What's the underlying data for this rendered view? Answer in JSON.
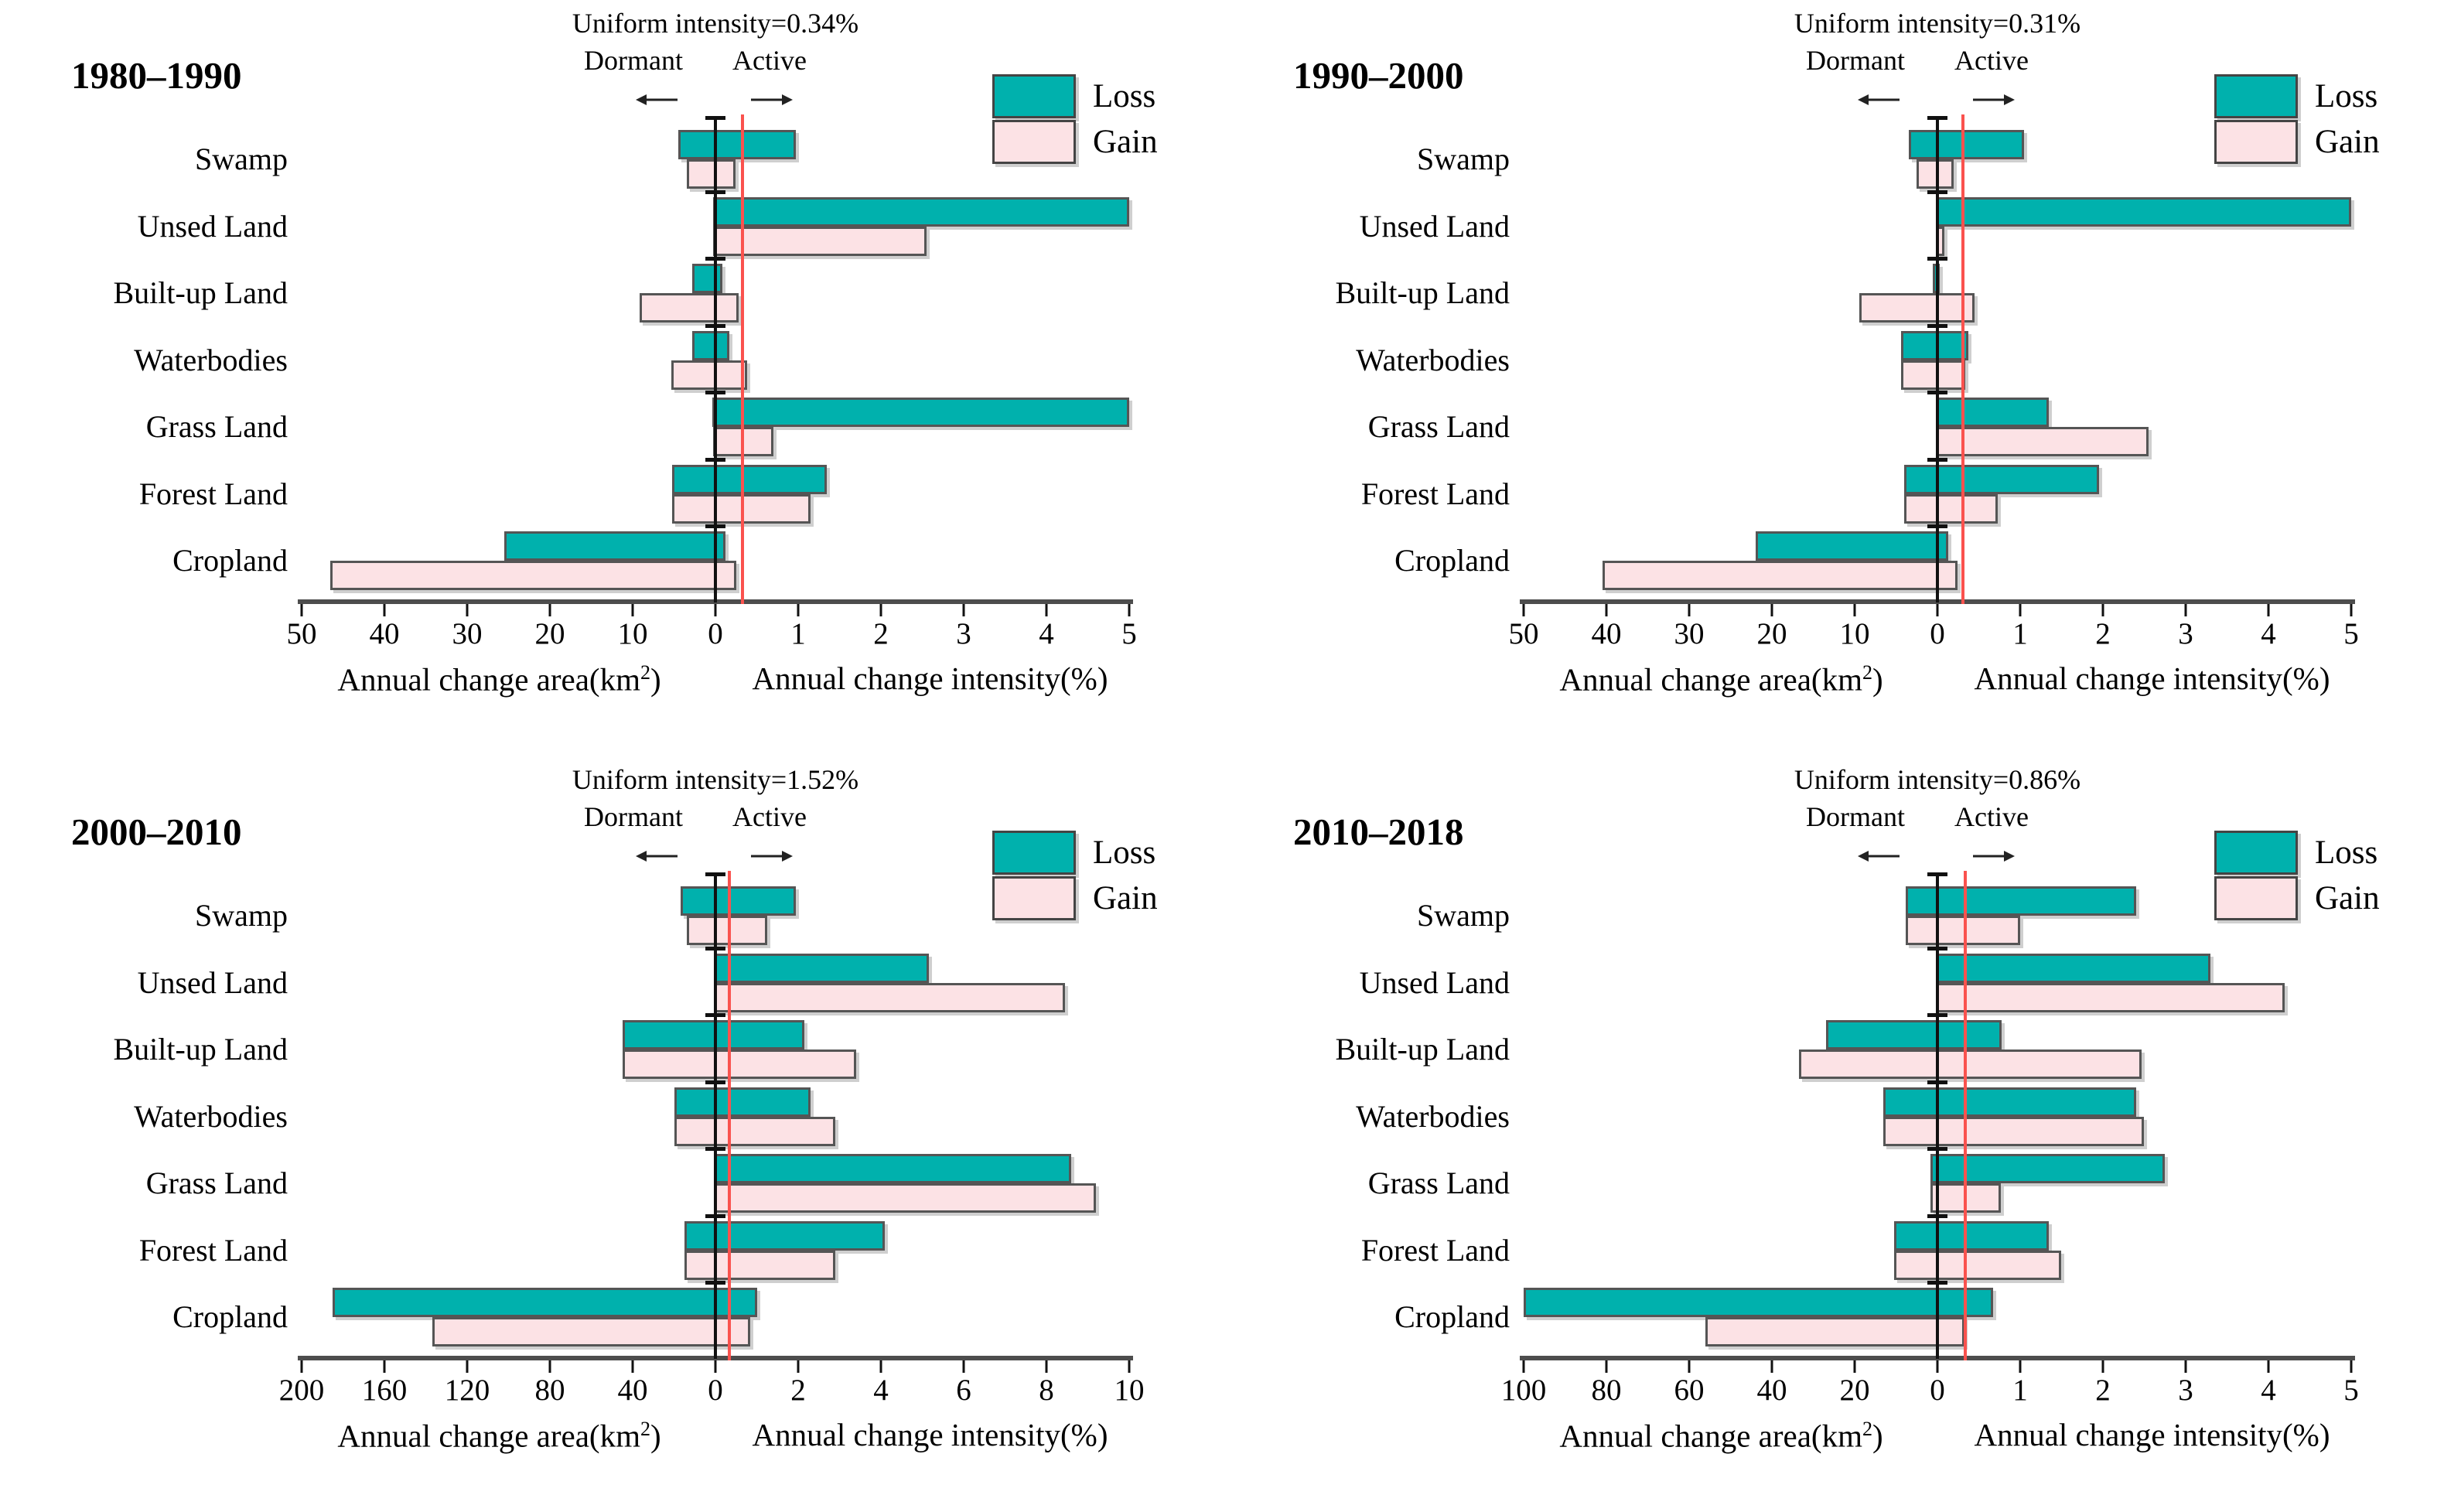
{
  "legend": {
    "loss": "Loss",
    "gain": "Gain",
    "position": "top-right"
  },
  "labels": {
    "dormant": "Dormant",
    "active": "Active",
    "area_caption_pre": "Annual change area(km",
    "area_caption_sup": "2",
    "area_caption_post": ")",
    "intensity_caption": "Annual change intensity(%)"
  },
  "colors": {
    "loss": "#00b1ad",
    "gain": "#fce2e5",
    "bar_border": "#555555",
    "axis": "#4d4d4d",
    "zero_line": "#111111",
    "red_line": "#fa524e",
    "text": "#000000",
    "background": "#ffffff"
  },
  "categories": [
    "Swamp",
    "Unsed Land",
    "Built-up Land",
    "Waterbodies",
    "Grass Land",
    "Forest Land",
    "Cropland"
  ],
  "chart_data": [
    {
      "type": "bar",
      "title": "1980–1990",
      "period": "1980–1990",
      "uniform_intensity_text": "Uniform intensity=0.34%",
      "uniform_intensity_pct": 0.34,
      "red_line_intensity_pct": 0.33,
      "grid": false,
      "categories": [
        "Swamp",
        "Unsed Land",
        "Built-up Land",
        "Waterbodies",
        "Grass Land",
        "Forest Land",
        "Cropland"
      ],
      "area_axis": {
        "label": "Annual change area(km2)",
        "max": 50,
        "step": 10,
        "ticks": [
          50,
          40,
          30,
          20,
          10,
          0
        ]
      },
      "intensity_axis": {
        "label": "Annual change intensity(%)",
        "max": 5,
        "step": 1,
        "ticks": [
          1,
          2,
          3,
          4,
          5
        ]
      },
      "series": [
        {
          "name": "Loss",
          "area_km2": [
            4.5,
            0.3,
            2.8,
            2.8,
            0.4,
            5.2,
            25.5
          ],
          "intensity_pct": [
            0.97,
            5.0,
            0.08,
            0.17,
            5.0,
            1.35,
            0.12
          ]
        },
        {
          "name": "Gain",
          "area_km2": [
            3.5,
            0.3,
            9.2,
            5.3,
            0.3,
            5.2,
            46.5
          ],
          "intensity_pct": [
            0.24,
            2.55,
            0.28,
            0.38,
            0.7,
            1.15,
            0.25
          ]
        }
      ]
    },
    {
      "type": "bar",
      "title": "1990–2000",
      "period": "1990–2000",
      "uniform_intensity_text": "Uniform intensity=0.31%",
      "uniform_intensity_pct": 0.31,
      "red_line_intensity_pct": 0.31,
      "grid": false,
      "categories": [
        "Swamp",
        "Unsed Land",
        "Built-up Land",
        "Waterbodies",
        "Grass Land",
        "Forest Land",
        "Cropland"
      ],
      "area_axis": {
        "label": "Annual change area(km2)",
        "max": 50,
        "step": 10,
        "ticks": [
          50,
          40,
          30,
          20,
          10,
          0
        ]
      },
      "intensity_axis": {
        "label": "Annual change intensity(%)",
        "max": 5,
        "step": 1,
        "ticks": [
          1,
          2,
          3,
          4,
          5
        ]
      },
      "series": [
        {
          "name": "Loss",
          "area_km2": [
            3.5,
            0.1,
            0.6,
            4.4,
            0.2,
            4.0,
            22.0
          ],
          "intensity_pct": [
            1.05,
            5.0,
            0.03,
            0.37,
            1.35,
            1.95,
            0.13
          ]
        },
        {
          "name": "Gain",
          "area_km2": [
            2.5,
            0.1,
            9.4,
            4.4,
            0.2,
            4.0,
            40.5
          ],
          "intensity_pct": [
            0.2,
            0.08,
            0.45,
            0.34,
            2.55,
            0.73,
            0.24
          ]
        }
      ]
    },
    {
      "type": "bar",
      "title": "2000–2010",
      "period": "2000–2010",
      "uniform_intensity_text": "Uniform intensity=1.52%",
      "uniform_intensity_pct": 1.52,
      "red_line_intensity_pct": 0.33,
      "grid": false,
      "categories": [
        "Swamp",
        "Unsed Land",
        "Built-up Land",
        "Waterbodies",
        "Grass Land",
        "Forest Land",
        "Cropland"
      ],
      "area_axis": {
        "label": "Annual change area(km2)",
        "max": 200,
        "step": 40,
        "ticks": [
          200,
          160,
          120,
          80,
          40,
          0
        ]
      },
      "intensity_axis": {
        "label": "Annual change intensity(%)",
        "max": 10,
        "step": 2,
        "ticks": [
          2,
          4,
          6,
          8,
          10
        ]
      },
      "series": [
        {
          "name": "Loss",
          "area_km2": [
            17,
            0.5,
            45,
            20,
            0.5,
            15,
            185
          ],
          "intensity_pct": [
            1.95,
            5.15,
            2.15,
            2.3,
            8.6,
            4.1,
            1.0
          ]
        },
        {
          "name": "Gain",
          "area_km2": [
            14,
            0.5,
            45,
            20,
            0.5,
            15,
            137
          ],
          "intensity_pct": [
            1.25,
            8.45,
            3.4,
            2.9,
            9.2,
            2.9,
            0.85
          ]
        }
      ]
    },
    {
      "type": "bar",
      "title": "2010–2018",
      "period": "2010–2018",
      "uniform_intensity_text": "Uniform intensity=0.86%",
      "uniform_intensity_pct": 0.86,
      "red_line_intensity_pct": 0.34,
      "grid": false,
      "categories": [
        "Swamp",
        "Unsed Land",
        "Built-up Land",
        "Waterbodies",
        "Grass Land",
        "Forest Land",
        "Cropland"
      ],
      "area_axis": {
        "label": "Annual change area(km2)",
        "max": 100,
        "step": 20,
        "ticks": [
          100,
          80,
          60,
          40,
          20,
          0
        ]
      },
      "intensity_axis": {
        "label": "Annual change intensity(%)",
        "max": 5,
        "step": 1,
        "ticks": [
          1,
          2,
          3,
          4,
          5
        ]
      },
      "series": [
        {
          "name": "Loss",
          "area_km2": [
            7.6,
            0.3,
            27,
            13,
            1.6,
            10.5,
            100
          ],
          "intensity_pct": [
            2.4,
            3.3,
            0.78,
            2.4,
            2.75,
            1.35,
            0.67
          ]
        },
        {
          "name": "Gain",
          "area_km2": [
            7.6,
            0.3,
            33.5,
            13,
            1.6,
            10.5,
            56
          ],
          "intensity_pct": [
            1.0,
            4.2,
            2.47,
            2.5,
            0.77,
            1.5,
            0.33
          ]
        }
      ]
    }
  ]
}
